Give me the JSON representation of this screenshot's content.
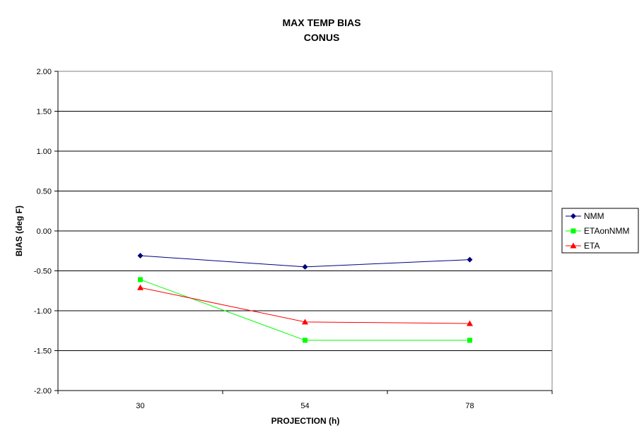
{
  "chart_data": {
    "type": "line",
    "title": "MAX TEMP BIAS",
    "subtitle": "CONUS",
    "xlabel": "PROJECTION (h)",
    "ylabel": "BIAS (deg F)",
    "categories": [
      "30",
      "54",
      "78"
    ],
    "ylim": [
      -2.0,
      2.0
    ],
    "yticks": [
      "2.00",
      "1.50",
      "1.00",
      "0.50",
      "0.00",
      "-0.50",
      "-1.00",
      "-1.50",
      "-2.00"
    ],
    "grid": true,
    "legend_position": "right",
    "series": [
      {
        "name": "NMM",
        "values": [
          -0.31,
          -0.45,
          -0.36
        ],
        "color": "#000080",
        "marker": "diamond"
      },
      {
        "name": "ETAonNMM",
        "values": [
          -0.61,
          -1.37,
          -1.37
        ],
        "color": "#00ff00",
        "marker": "square"
      },
      {
        "name": "ETA",
        "values": [
          -0.71,
          -1.14,
          -1.16
        ],
        "color": "#ff0000",
        "marker": "triangle"
      }
    ]
  }
}
